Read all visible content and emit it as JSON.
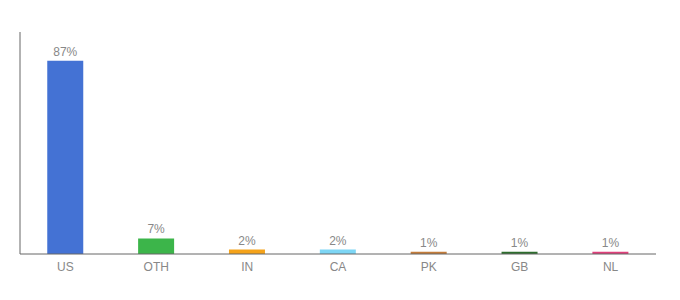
{
  "chart_data": {
    "type": "bar",
    "categories": [
      "US",
      "OTH",
      "IN",
      "CA",
      "PK",
      "GB",
      "NL"
    ],
    "values": [
      87,
      7,
      2,
      2,
      1,
      1,
      1
    ],
    "value_labels": [
      "87%",
      "7%",
      "2%",
      "2%",
      "1%",
      "1%",
      "1%"
    ],
    "colors": [
      "#4472d4",
      "#3cb54a",
      "#f5a31a",
      "#7dd6f5",
      "#c47c3a",
      "#2d6e2d",
      "#e0407b"
    ],
    "ylim": [
      0,
      100
    ],
    "data_labels": true,
    "tick_labels": "x",
    "grid": false
  }
}
